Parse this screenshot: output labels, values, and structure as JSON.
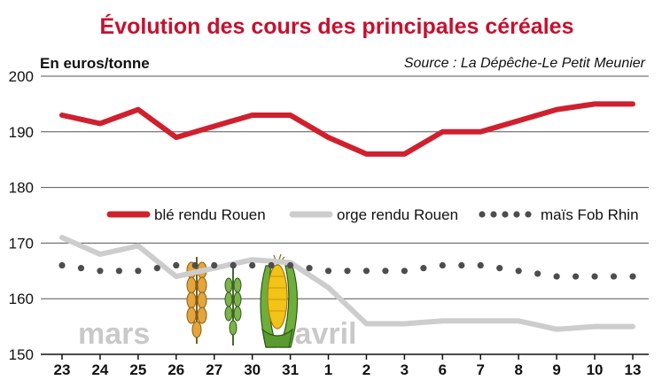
{
  "chart_data": {
    "type": "line",
    "title": "Évolution des cours des principales céréales",
    "ylabel": "En euros/tonne",
    "source": "Source : La Dépêche-Le Petit Meunier",
    "ylim": [
      150,
      200
    ],
    "yticks": [
      150,
      160,
      170,
      180,
      190,
      200
    ],
    "grid": true,
    "legend_position": "middle",
    "categories": [
      "23",
      "24",
      "25",
      "26",
      "27",
      "30",
      "31",
      "1",
      "2",
      "3",
      "6",
      "7",
      "8",
      "9",
      "10",
      "13"
    ],
    "month_labels": [
      {
        "text": "mars",
        "start_index": 0
      },
      {
        "text": "avril",
        "start_index": 7
      }
    ],
    "series": [
      {
        "name": "blé rendu Rouen",
        "color": "#d0202e",
        "style": "solid",
        "values": [
          193,
          191.5,
          194,
          189,
          191,
          193,
          193,
          189,
          186,
          186,
          190,
          190,
          192,
          194,
          195,
          195
        ]
      },
      {
        "name": "orge rendu Rouen",
        "color": "#cdcdcd",
        "style": "solid",
        "values": [
          171,
          168,
          169.5,
          164,
          165.5,
          167,
          166.5,
          162,
          155.5,
          155.5,
          156,
          156,
          156,
          154.5,
          155,
          155
        ]
      },
      {
        "name": "maïs Fob Rhin",
        "color": "#4d4d4d",
        "style": "dotted",
        "values": [
          166,
          165,
          165,
          166,
          166,
          166,
          166,
          165,
          165,
          165,
          166,
          166,
          165,
          164,
          164,
          164
        ]
      }
    ]
  }
}
